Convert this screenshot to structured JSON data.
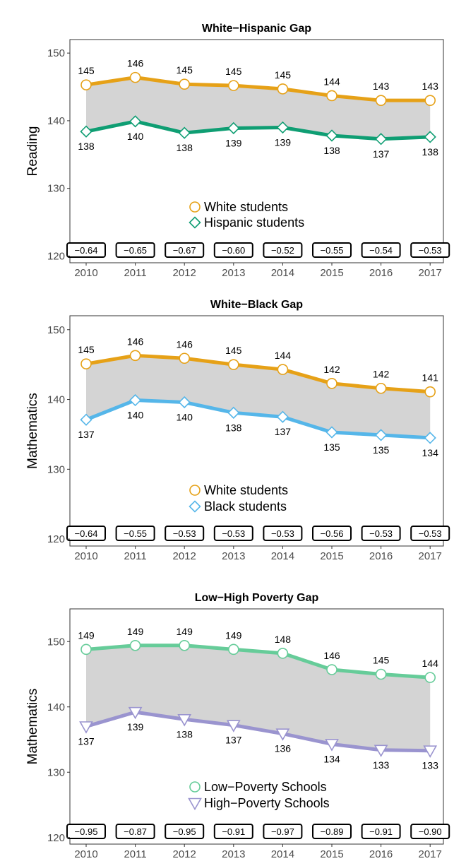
{
  "chart_data": [
    {
      "type": "line",
      "title": "White−Hispanic Gap",
      "ylabel": "Reading",
      "xlabel": "",
      "x": [
        "2010",
        "2011",
        "2012",
        "2013",
        "2014",
        "2015",
        "2016",
        "2017"
      ],
      "yticks": [
        "120",
        "130",
        "140",
        "150"
      ],
      "ylim": [
        119,
        152
      ],
      "grid": false,
      "legend_position": "center-bottom",
      "series": [
        {
          "name": "White students",
          "marker": "circle",
          "color": "#e6a117",
          "values": [
            145.3,
            146.4,
            145.4,
            145.2,
            144.7,
            143.7,
            143.0,
            143.0
          ],
          "labels": [
            "145",
            "146",
            "145",
            "145",
            "145",
            "144",
            "143",
            "143"
          ]
        },
        {
          "name": "Hispanic students",
          "marker": "diamond",
          "color": "#0f9e73",
          "values": [
            138.4,
            139.9,
            138.2,
            138.9,
            139.0,
            137.8,
            137.3,
            137.6
          ],
          "labels": [
            "138",
            "140",
            "138",
            "139",
            "139",
            "138",
            "137",
            "138"
          ]
        }
      ],
      "gaps": [
        "−0.64",
        "−0.65",
        "−0.67",
        "−0.60",
        "−0.52",
        "−0.55",
        "−0.54",
        "−0.53"
      ]
    },
    {
      "type": "line",
      "title": "White−Black Gap",
      "ylabel": "Mathematics",
      "xlabel": "",
      "x": [
        "2010",
        "2011",
        "2012",
        "2013",
        "2014",
        "2015",
        "2016",
        "2017"
      ],
      "yticks": [
        "120",
        "130",
        "140",
        "150"
      ],
      "ylim": [
        119,
        152
      ],
      "grid": false,
      "legend_position": "center-bottom",
      "series": [
        {
          "name": "White students",
          "marker": "circle",
          "color": "#e6a117",
          "values": [
            145.1,
            146.3,
            145.9,
            145.0,
            144.3,
            142.3,
            141.6,
            141.1
          ],
          "labels": [
            "145",
            "146",
            "146",
            "145",
            "144",
            "142",
            "142",
            "141"
          ]
        },
        {
          "name": "Black students",
          "marker": "diamond",
          "color": "#55b6e9",
          "values": [
            137.1,
            139.9,
            139.6,
            138.1,
            137.5,
            135.3,
            134.9,
            134.5
          ],
          "labels": [
            "137",
            "140",
            "140",
            "138",
            "137",
            "135",
            "135",
            "134"
          ]
        }
      ],
      "gaps": [
        "−0.64",
        "−0.55",
        "−0.53",
        "−0.53",
        "−0.53",
        "−0.56",
        "−0.53",
        "−0.53"
      ]
    },
    {
      "type": "line",
      "title": "Low−High Poverty Gap",
      "ylabel": "Mathematics",
      "xlabel": "",
      "x": [
        "2010",
        "2011",
        "2012",
        "2013",
        "2014",
        "2015",
        "2016",
        "2017"
      ],
      "yticks": [
        "120",
        "130",
        "140",
        "150"
      ],
      "ylim": [
        119,
        155
      ],
      "grid": false,
      "legend_position": "center-bottom",
      "series": [
        {
          "name": "Low−Poverty Schools",
          "marker": "circle",
          "color": "#66cc99",
          "values": [
            148.8,
            149.4,
            149.4,
            148.8,
            148.2,
            145.7,
            145.0,
            144.5
          ],
          "labels": [
            "149",
            "149",
            "149",
            "149",
            "148",
            "146",
            "145",
            "144"
          ]
        },
        {
          "name": "High−Poverty Schools",
          "marker": "triangle-down",
          "color": "#9a94cf",
          "values": [
            137.0,
            139.2,
            138.1,
            137.2,
            135.9,
            134.3,
            133.4,
            133.3
          ],
          "labels": [
            "137",
            "139",
            "138",
            "137",
            "136",
            "134",
            "133",
            "133"
          ]
        }
      ],
      "gaps": [
        "−0.95",
        "−0.87",
        "−0.95",
        "−0.91",
        "−0.97",
        "−0.89",
        "−0.91",
        "−0.90"
      ]
    }
  ]
}
